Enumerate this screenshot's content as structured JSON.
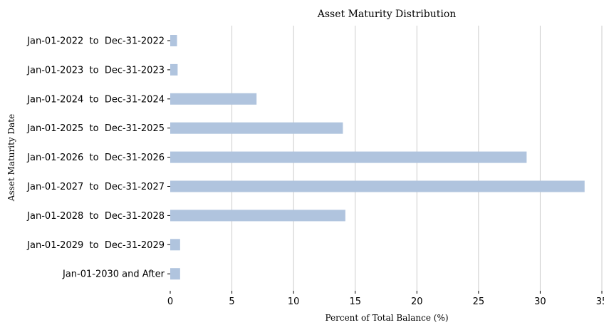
{
  "chart_data": {
    "type": "bar",
    "orientation": "horizontal",
    "title": "Asset Maturity Distribution",
    "xlabel": "Percent of Total Balance (%)",
    "ylabel": "Asset Maturity Date",
    "categories": [
      "Jan-01-2022  to  Dec-31-2022",
      "Jan-01-2023  to  Dec-31-2023",
      "Jan-01-2024  to  Dec-31-2024",
      "Jan-01-2025  to  Dec-31-2025",
      "Jan-01-2026  to  Dec-31-2026",
      "Jan-01-2027  to  Dec-31-2027",
      "Jan-01-2028  to  Dec-31-2028",
      "Jan-01-2029  to  Dec-31-2029",
      "Jan-01-2030 and After"
    ],
    "values": [
      0.55,
      0.6,
      7.0,
      14.0,
      28.9,
      33.6,
      14.2,
      0.8,
      0.8
    ],
    "xlim": [
      0,
      35
    ],
    "xticks": [
      "0",
      "5",
      "10",
      "15",
      "20",
      "25",
      "30",
      "35"
    ],
    "grid": "vertical",
    "bar_color": "#b0c4de",
    "grid_color": "#cccccc"
  }
}
